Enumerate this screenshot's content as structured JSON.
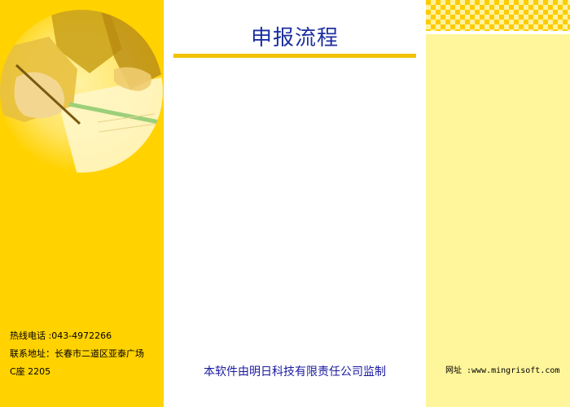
{
  "header": {
    "title": "申报流程"
  },
  "contact": {
    "hotline": "热线电话 :043-4972266",
    "address_line1": "联系地址：长春市二道区亚泰广场",
    "address_line2": "C座 2205"
  },
  "footer": {
    "supervision": "本软件由明日科技有限责任公司监制",
    "website": "网址 :www.mingrisoft.com"
  },
  "colors": {
    "left_panel": "#ffd200",
    "right_panel": "#fff59a",
    "title_text": "#1c2fa0",
    "title_rule": "#f2c200"
  },
  "icons": {
    "banner_photo": "hand-writing-photo"
  }
}
